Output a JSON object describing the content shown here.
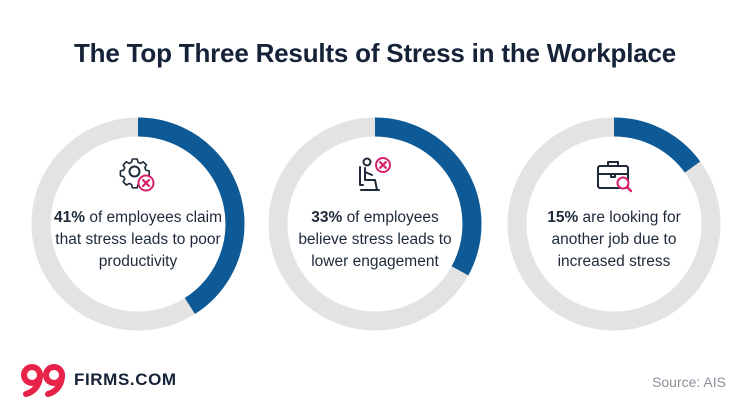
{
  "chart_data": {
    "type": "donut",
    "title": "The Top Three Results of Stress in the Workplace",
    "series": [
      {
        "value": 41,
        "percent_label": "41%",
        "text": "of employees claim that stress leads to poor productivity",
        "icon": "gear-x-icon"
      },
      {
        "value": 33,
        "percent_label": "33%",
        "text": "of employees believe stress leads to lower engagement",
        "icon": "seated-person-x-icon"
      },
      {
        "value": 15,
        "percent_label": "15%",
        "text": "are looking for another job due to increased stress",
        "icon": "briefcase-search-icon"
      }
    ],
    "max": 100,
    "colors": {
      "filled": "#0e5a96",
      "track": "#e3e3e3",
      "icon_accent": "#d9226d",
      "icon_line": "#1e2a3a"
    }
  },
  "footer": {
    "logo_text": "FIRMS.COM",
    "logo_mark": "99",
    "source": "Source: AIS"
  }
}
